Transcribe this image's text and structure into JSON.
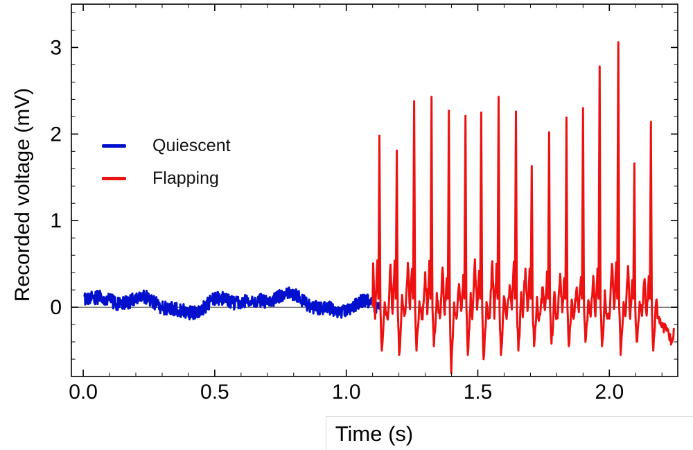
{
  "figure": {
    "background": "#ffffff"
  },
  "chart_data": {
    "type": "line",
    "title": "",
    "xlabel": "Time (s)",
    "ylabel": "Recorded voltage (mV)",
    "xlim": [
      -0.045,
      2.26
    ],
    "ylim": [
      -0.8,
      3.5
    ],
    "xticks": [
      {
        "v": 0.0,
        "label": "0.0"
      },
      {
        "v": 0.5,
        "label": "0.5"
      },
      {
        "v": 1.0,
        "label": "1.0"
      },
      {
        "v": 1.5,
        "label": "1.5"
      },
      {
        "v": 2.0,
        "label": "2.0"
      }
    ],
    "yticks": [
      {
        "v": 0,
        "label": "0"
      },
      {
        "v": 1,
        "label": "1"
      },
      {
        "v": 2,
        "label": "2"
      },
      {
        "v": 3,
        "label": "3"
      }
    ],
    "x_minor_step": 0.1,
    "y_minor_step": 0.2,
    "axis_line_y": 0,
    "grid": false,
    "legend": {
      "position": "inside upper-left",
      "entries": [
        {
          "label": "Quiescent",
          "color": "#0010cc"
        },
        {
          "label": "Flapping",
          "color": "#ee1111"
        }
      ]
    },
    "series": [
      {
        "name": "Quiescent",
        "kind": "noise",
        "color": "#0010cc",
        "stroke_width": 3.2,
        "t_start": 0.005,
        "t_end": 1.125,
        "baseline": 0.05,
        "slow_amplitude": 0.08,
        "noise_amplitude": 0.08
      },
      {
        "name": "Flapping",
        "kind": "spiky",
        "color": "#ee1111",
        "stroke_width": 3.0,
        "t_start": 1.1,
        "t_end": 2.245,
        "noise_amplitude": 0.07,
        "spikes": [
          {
            "t": 1.126,
            "peak": 1.98,
            "dip": -0.5
          },
          {
            "t": 1.192,
            "peak": 1.81,
            "dip": -0.55
          },
          {
            "t": 1.258,
            "peak": 2.38,
            "dip": -0.5
          },
          {
            "t": 1.324,
            "peak": 2.43,
            "dip": -0.45
          },
          {
            "t": 1.39,
            "peak": 2.27,
            "dip": -0.76
          },
          {
            "t": 1.453,
            "peak": 2.21,
            "dip": -0.55
          },
          {
            "t": 1.513,
            "peak": 2.25,
            "dip": -0.6
          },
          {
            "t": 1.579,
            "peak": 2.43,
            "dip": -0.55
          },
          {
            "t": 1.645,
            "peak": 2.26,
            "dip": -0.5
          },
          {
            "t": 1.705,
            "peak": 1.63,
            "dip": -0.45
          },
          {
            "t": 1.771,
            "peak": 2.02,
            "dip": -0.42
          },
          {
            "t": 1.837,
            "peak": 2.19,
            "dip": -0.45
          },
          {
            "t": 1.9,
            "peak": 2.3,
            "dip": -0.4
          },
          {
            "t": 1.963,
            "peak": 2.78,
            "dip": -0.45
          },
          {
            "t": 2.034,
            "peak": 3.06,
            "dip": -0.55
          },
          {
            "t": 2.095,
            "peak": 1.66,
            "dip": -0.4
          },
          {
            "t": 2.158,
            "peak": 2.14,
            "dip": -0.5
          }
        ]
      }
    ]
  }
}
